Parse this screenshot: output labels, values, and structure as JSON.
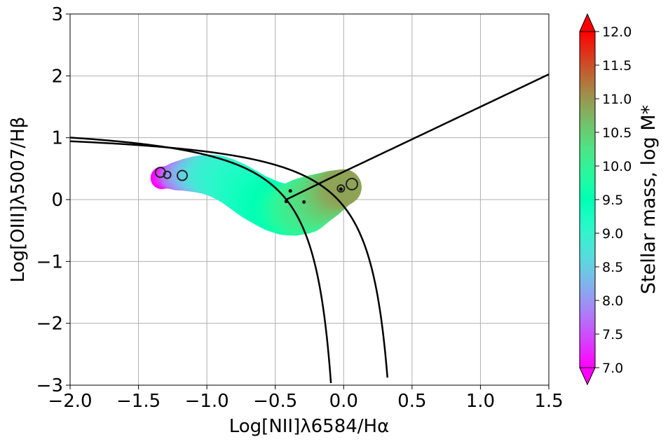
{
  "chart_data": {
    "type": "scatter",
    "title": "",
    "xlabel": "Log[NII]λ6584/Hα",
    "ylabel": "Log[OIII]λ5007/Hβ",
    "xlim": [
      -2.0,
      1.5
    ],
    "ylim": [
      -3,
      3
    ],
    "grid": true,
    "x_ticks": [
      -2.0,
      -1.5,
      -1.0,
      -0.5,
      0.0,
      0.5,
      1.0,
      1.5
    ],
    "x_tick_labels": [
      "−2.0",
      "−1.5",
      "−1.0",
      "−0.5",
      "0.0",
      "0.5",
      "1.0",
      "1.5"
    ],
    "y_ticks": [
      -3,
      -2,
      -1,
      0,
      1,
      2,
      3
    ],
    "y_tick_labels": [
      "−3",
      "−2",
      "−1",
      "0",
      "1",
      "2",
      "3"
    ],
    "colorbar": {
      "label": "Stellar mass, log M*",
      "min": 7.0,
      "max": 12.0,
      "extend": "both",
      "colormap": "rainbow",
      "ticks": [
        7.0,
        7.5,
        8.0,
        8.5,
        9.0,
        9.5,
        10.0,
        10.5,
        11.0,
        11.5,
        12.0
      ],
      "tick_labels": [
        "7.0",
        "7.5",
        "8.0",
        "8.5",
        "9.0",
        "9.5",
        "10.0",
        "10.5",
        "11.0",
        "11.5",
        "12.0"
      ]
    },
    "curves": [
      {
        "kind": "kewley_max_starburst"
      },
      {
        "kind": "kauffmann_composite"
      },
      {
        "kind": "seyfert_liner_line"
      },
      {
        "kind": "connector"
      }
    ],
    "mass_track": [
      {
        "x": -1.33,
        "y": 0.35,
        "mass": 7.0
      },
      {
        "x": -1.22,
        "y": 0.38,
        "mass": 7.8
      },
      {
        "x": -1.15,
        "y": 0.4,
        "mass": 8.1
      },
      {
        "x": -1.08,
        "y": 0.41,
        "mass": 8.4
      },
      {
        "x": -1.0,
        "y": 0.41,
        "mass": 8.7
      },
      {
        "x": -0.93,
        "y": 0.38,
        "mass": 8.9
      },
      {
        "x": -0.86,
        "y": 0.32,
        "mass": 9.0
      },
      {
        "x": -0.79,
        "y": 0.24,
        "mass": 9.1
      },
      {
        "x": -0.72,
        "y": 0.14,
        "mass": 9.2
      },
      {
        "x": -0.65,
        "y": 0.04,
        "mass": 9.3
      },
      {
        "x": -0.57,
        "y": -0.05,
        "mass": 9.4
      },
      {
        "x": -0.5,
        "y": -0.12,
        "mass": 9.5
      },
      {
        "x": -0.43,
        "y": -0.16,
        "mass": 9.6
      },
      {
        "x": -0.36,
        "y": -0.15,
        "mass": 9.8
      },
      {
        "x": -0.29,
        "y": -0.1,
        "mass": 10.0
      },
      {
        "x": -0.22,
        "y": -0.02,
        "mass": 10.2
      },
      {
        "x": -0.15,
        "y": 0.05,
        "mass": 10.4
      },
      {
        "x": -0.09,
        "y": 0.12,
        "mass": 10.6
      },
      {
        "x": -0.04,
        "y": 0.17,
        "mass": 10.8
      },
      {
        "x": 0.0,
        "y": 0.2,
        "mass": 10.9
      }
    ],
    "open_markers": [
      {
        "x": -1.34,
        "y": 0.44
      },
      {
        "x": -1.29,
        "y": 0.4
      },
      {
        "x": -1.18,
        "y": 0.39
      },
      {
        "x": -0.02,
        "y": 0.18
      },
      {
        "x": 0.06,
        "y": 0.25
      }
    ],
    "small_points": [
      {
        "x": -0.39,
        "y": 0.14
      },
      {
        "x": -0.42,
        "y": -0.03
      },
      {
        "x": -0.29,
        "y": -0.04
      },
      {
        "x": -0.02,
        "y": 0.17
      }
    ]
  }
}
